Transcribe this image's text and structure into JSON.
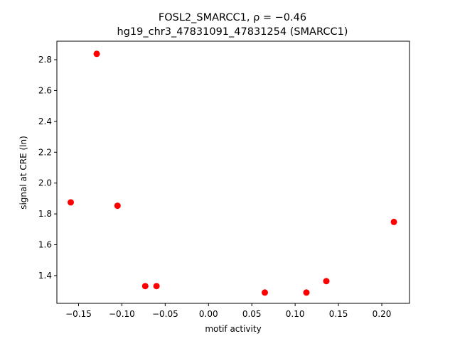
{
  "chart_data": {
    "type": "scatter",
    "title_line1": "FOSL2_SMARCC1, ρ = −0.46",
    "title_line2": "hg19_chr3_47831091_47831254 (SMARCC1)",
    "xlabel": "motif activity",
    "ylabel": "signal at CRE (ln)",
    "xlim": [
      -0.175,
      0.232
    ],
    "ylim": [
      1.22,
      2.92
    ],
    "xticks": [
      -0.15,
      -0.1,
      -0.05,
      0.0,
      0.05,
      0.1,
      0.15,
      0.2
    ],
    "xtick_labels": [
      "−0.15",
      "−0.10",
      "−0.05",
      "0.00",
      "0.05",
      "0.10",
      "0.15",
      "0.20"
    ],
    "yticks": [
      1.4,
      1.6,
      1.8,
      2.0,
      2.2,
      2.4,
      2.6,
      2.8
    ],
    "ytick_labels": [
      "1.4",
      "1.6",
      "1.8",
      "2.0",
      "2.2",
      "2.4",
      "2.6",
      "2.8"
    ],
    "grid": false,
    "point_color": "#ff0000",
    "points": [
      {
        "x": -0.159,
        "y": 1.875
      },
      {
        "x": -0.129,
        "y": 2.838
      },
      {
        "x": -0.105,
        "y": 1.853
      },
      {
        "x": -0.073,
        "y": 1.332
      },
      {
        "x": -0.06,
        "y": 1.332
      },
      {
        "x": 0.065,
        "y": 1.29
      },
      {
        "x": 0.113,
        "y": 1.29
      },
      {
        "x": 0.136,
        "y": 1.364
      },
      {
        "x": 0.214,
        "y": 1.748
      }
    ]
  }
}
